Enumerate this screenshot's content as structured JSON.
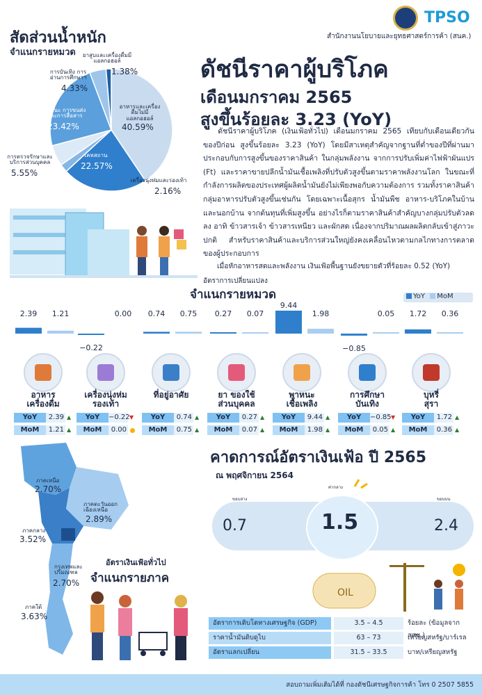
{
  "header": {
    "logo_text": "TPSO",
    "agency": "สำนักงานนโยบายและยุทธศาสตร์การค้า (สนค.)"
  },
  "title": {
    "line1": "ดัชนีราคาผู้บริโภค",
    "line2": "เดือนมกราคม 2565",
    "line3": "สูงขึ้นร้อยละ 3.23 (YoY)"
  },
  "weights": {
    "title1": "สัดส่วนน้ำหนัก",
    "title2": "จำแนกรายหมวด",
    "slices": [
      {
        "label": "อาหารและเครื่องดื่มไม่มีแอลกอฮอล์",
        "value": "40.59%",
        "pct": 40.59,
        "color": "#c9dcef"
      },
      {
        "label": "เคหสถาน",
        "value": "22.57%",
        "pct": 22.57,
        "color": "#2f7fcc"
      },
      {
        "label": "เครื่องนุ่งห่มและรองเท้า",
        "value": "2.16%",
        "pct": 2.16,
        "color": "#86b7e4"
      },
      {
        "label": "การตรวจรักษาและบริการส่วนบุคคล",
        "value": "5.55%",
        "pct": 5.55,
        "color": "#dce9f6"
      },
      {
        "label": "พาหนะ การขนส่งและการสื่อสาร",
        "value": "23.42%",
        "pct": 23.42,
        "color": "#5b9fdc"
      },
      {
        "label": "การบันเทิง การอ่านการศึกษาฯ",
        "value": "4.33%",
        "pct": 4.33,
        "color": "#9fc6ea"
      },
      {
        "label": "ยาสูบและเครื่องดื่มมีแอลกอฮอล์",
        "value": "1.38%",
        "pct": 1.38,
        "color": "#1d5fa6"
      }
    ]
  },
  "body": {
    "paragraph": "ดัชนีราคาผู้บริโภค (เงินเฟ้อทั่วไป) เดือนมกราคม 2565 เทียบกับเดือนเดียวกันของปีก่อน สูงขึ้นร้อยละ 3.23 (YoY) โดยมีสาเหตุสำคัญจากฐานที่ต่ำของปีที่ผ่านมา ประกอบกับการสูงขึ้นของราคาสินค้า ในกลุ่มพลังงาน จากการปรับเพิ่มค่าไฟฟ้าผันแปร (Ft) และราคาขายปลีกน้ำมันเชื้อเพลิงที่ปรับตัวสูงขึ้นตามราคาพลังงานโลก ในขณะที่กำลังการผลิตของประเทศผู้ผลิตน้ำมันยังไม่เพียงพอกับความต้องการ รวมทั้งราคาสินค้ากลุ่มอาหารปรับตัวสูงขึ้นเช่นกัน โดยเฉพาะเนื้อสุกร น้ำมันพืช อาหาร-บริโภคในบ้านและนอกบ้าน จากต้นทุนที่เพิ่มสูงขึ้น อย่างไรก็ตามราคาสินค้าสำคัญบางกลุ่มปรับตัวลดลง อาทิ ข้าวสารเจ้า ข้าวสารเหนียว และผักสด เนื่องจากปริมาณผลผลิตกลับเข้าสู่ภาวะปกติ สำหรับราคาสินค้าและบริการส่วนใหญ่ยังคงเคลื่อนไหวตามกลไกทางการตลาดของผู้ประกอบการ",
    "core": "เมื่อหักอาหารสดและพลังงาน เงินเฟ้อพื้นฐานยังขยายตัวที่ร้อยละ 0.52 (YoY)"
  },
  "category_chart": {
    "title1": "อัตราการเปลี่ยนแปลง",
    "title2": "จำแนกรายหมวด",
    "legend_yoy": "YoY",
    "legend_mom": "MoM",
    "colors": {
      "yoy": "#2f7fcc",
      "mom": "#a9cdef"
    }
  },
  "chart_data": {
    "type": "bar",
    "categories": [
      "อาหาร เครื่องดื่ม",
      "เครื่องนุ่งห่ม รองเท้า",
      "ที่อยู่อาศัย",
      "ยา ของใช้ ส่วนบุคคล",
      "พาหนะ เชื้อเพลิง",
      "การศึกษา บันเทิง",
      "บุหรี่ สุรา"
    ],
    "series": [
      {
        "name": "YoY",
        "values": [
          2.39,
          -0.22,
          0.74,
          0.27,
          9.44,
          -0.85,
          1.72
        ],
        "labels": [
          "2.39",
          "−0.22",
          "0.74",
          "0.27",
          "9.44",
          "−0.85",
          "1.72"
        ]
      },
      {
        "name": "MoM",
        "values": [
          1.21,
          0.0,
          0.75,
          0.07,
          1.98,
          0.05,
          0.36
        ],
        "labels": [
          "1.21",
          "0.00",
          "0.75",
          "0.07",
          "1.98",
          "0.05",
          "0.36"
        ]
      }
    ]
  },
  "categories": [
    {
      "name1": "อาหาร",
      "name2": "เครื่องดื่ม",
      "yoy_label": "YoY",
      "yoy": "2.39",
      "mom_label": "MoM",
      "mom": "1.21",
      "yoy_dir": "up",
      "mom_dir": "up",
      "icon": "food-icon"
    },
    {
      "name1": "เครื่องนุ่งห่ม",
      "name2": "รองเท้า",
      "yoy_label": "YoY",
      "yoy": "−0.22",
      "mom_label": "MoM",
      "mom": "0.00",
      "yoy_dir": "down",
      "mom_dir": "same",
      "icon": "clothing-icon"
    },
    {
      "name1": "ที่อยู่อาศัย",
      "name2": "",
      "yoy_label": "YoY",
      "yoy": "0.74",
      "mom_label": "MoM",
      "mom": "0.75",
      "yoy_dir": "up",
      "mom_dir": "up",
      "icon": "house-icon"
    },
    {
      "name1": "ยา ของใช้",
      "name2": "ส่วนบุคคล",
      "yoy_label": "YoY",
      "yoy": "0.27",
      "mom_label": "MoM",
      "mom": "0.07",
      "yoy_dir": "up",
      "mom_dir": "up",
      "icon": "medicine-icon"
    },
    {
      "name1": "พาหนะ",
      "name2": "เชื้อเพลิง",
      "yoy_label": "YoY",
      "yoy": "9.44",
      "mom_label": "MoM",
      "mom": "1.98",
      "yoy_dir": "up",
      "mom_dir": "up",
      "icon": "fuel-icon"
    },
    {
      "name1": "การศึกษา",
      "name2": "บันเทิง",
      "yoy_label": "YoY",
      "yoy": "−0.85",
      "mom_label": "MoM",
      "mom": "0.05",
      "yoy_dir": "down",
      "mom_dir": "up",
      "icon": "education-icon"
    },
    {
      "name1": "บุหรี่",
      "name2": "สุรา",
      "yoy_label": "YoY",
      "yoy": "1.72",
      "mom_label": "MoM",
      "mom": "0.36",
      "yoy_dir": "up",
      "mom_dir": "up",
      "icon": "tobacco-liquor-icon"
    }
  ],
  "regions": {
    "title1": "อัตราเงินเฟ้อทั่วไป",
    "title2": "จำแนกรายภาค",
    "items": [
      {
        "name": "ภาคเหนือ",
        "value": "2.70%"
      },
      {
        "name": "ภาคตะวันออกเฉียงเหนือ",
        "value": "2.89%"
      },
      {
        "name": "ภาคกลาง",
        "value": "3.52%"
      },
      {
        "name": "กรุงเทพและปริมณฑล",
        "value": "2.70%"
      },
      {
        "name": "ภาคใต้",
        "value": "3.63%"
      }
    ]
  },
  "forecast": {
    "title": "คาดการณ์อัตราเงินเฟ้อ ปี 2565",
    "subtitle": "ณ พฤศจิกายน 2564",
    "low_label": "ขอบล่าง",
    "mid_label": "ค่ากลาง",
    "high_label": "ขอบบน",
    "low": "0.7",
    "mid": "1.5",
    "high": "2.4"
  },
  "assumptions": [
    {
      "name": "อัตราการเติบโตทางเศรษฐกิจ (GDP)",
      "range": "3.5 – 4.5",
      "unit": "ร้อยละ (ข้อมูลจาก สศช.)"
    },
    {
      "name": "ราคาน้ำมันดิบดูไบ",
      "range": "63 – 73",
      "unit": "เหรียญสหรัฐ/บาร์เรล"
    },
    {
      "name": "อัตราแลกเปลี่ยน",
      "range": "31.5 – 33.5",
      "unit": "บาท/เหรียญสหรัฐ"
    }
  ],
  "footer": {
    "text": "สอบถามเพิ่มเติมได้ที่ กองดัชนีเศรษฐกิจการค้า โทร 0 2507 5855"
  }
}
